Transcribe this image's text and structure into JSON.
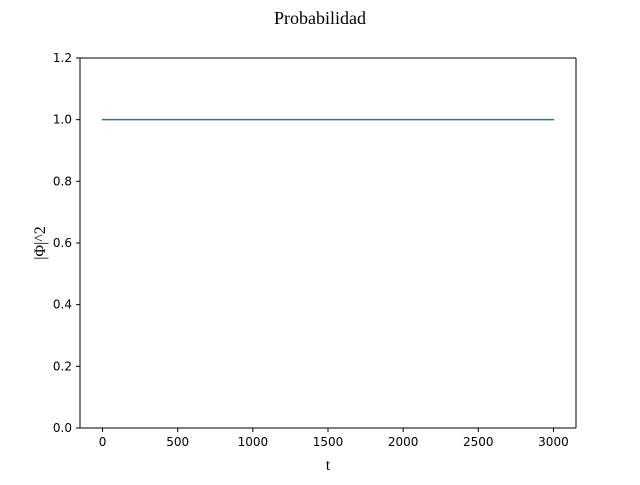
{
  "chart_data": {
    "type": "line",
    "title": "Probabilidad",
    "xlabel": "t",
    "ylabel": "|Φ|^2",
    "xlim": [
      -150,
      3150
    ],
    "ylim": [
      0,
      1.2
    ],
    "xticks": [
      0,
      500,
      1000,
      1500,
      2000,
      2500,
      3000
    ],
    "xtick_labels": [
      "0",
      "500",
      "1000",
      "1500",
      "2000",
      "2500",
      "3000"
    ],
    "yticks": [
      0.0,
      0.2,
      0.4,
      0.6,
      0.8,
      1.0,
      1.2
    ],
    "ytick_labels": [
      "0.0",
      "0.2",
      "0.4",
      "0.6",
      "0.8",
      "1.0",
      "1.2"
    ],
    "grid": false,
    "legend": "none",
    "series": [
      {
        "color": "#1f77b4",
        "x": [
          0,
          500,
          1000,
          1500,
          2000,
          2500,
          3000
        ],
        "y": [
          1.0,
          1.0,
          1.0,
          1.0,
          1.0,
          1.0,
          1.0
        ]
      }
    ]
  }
}
